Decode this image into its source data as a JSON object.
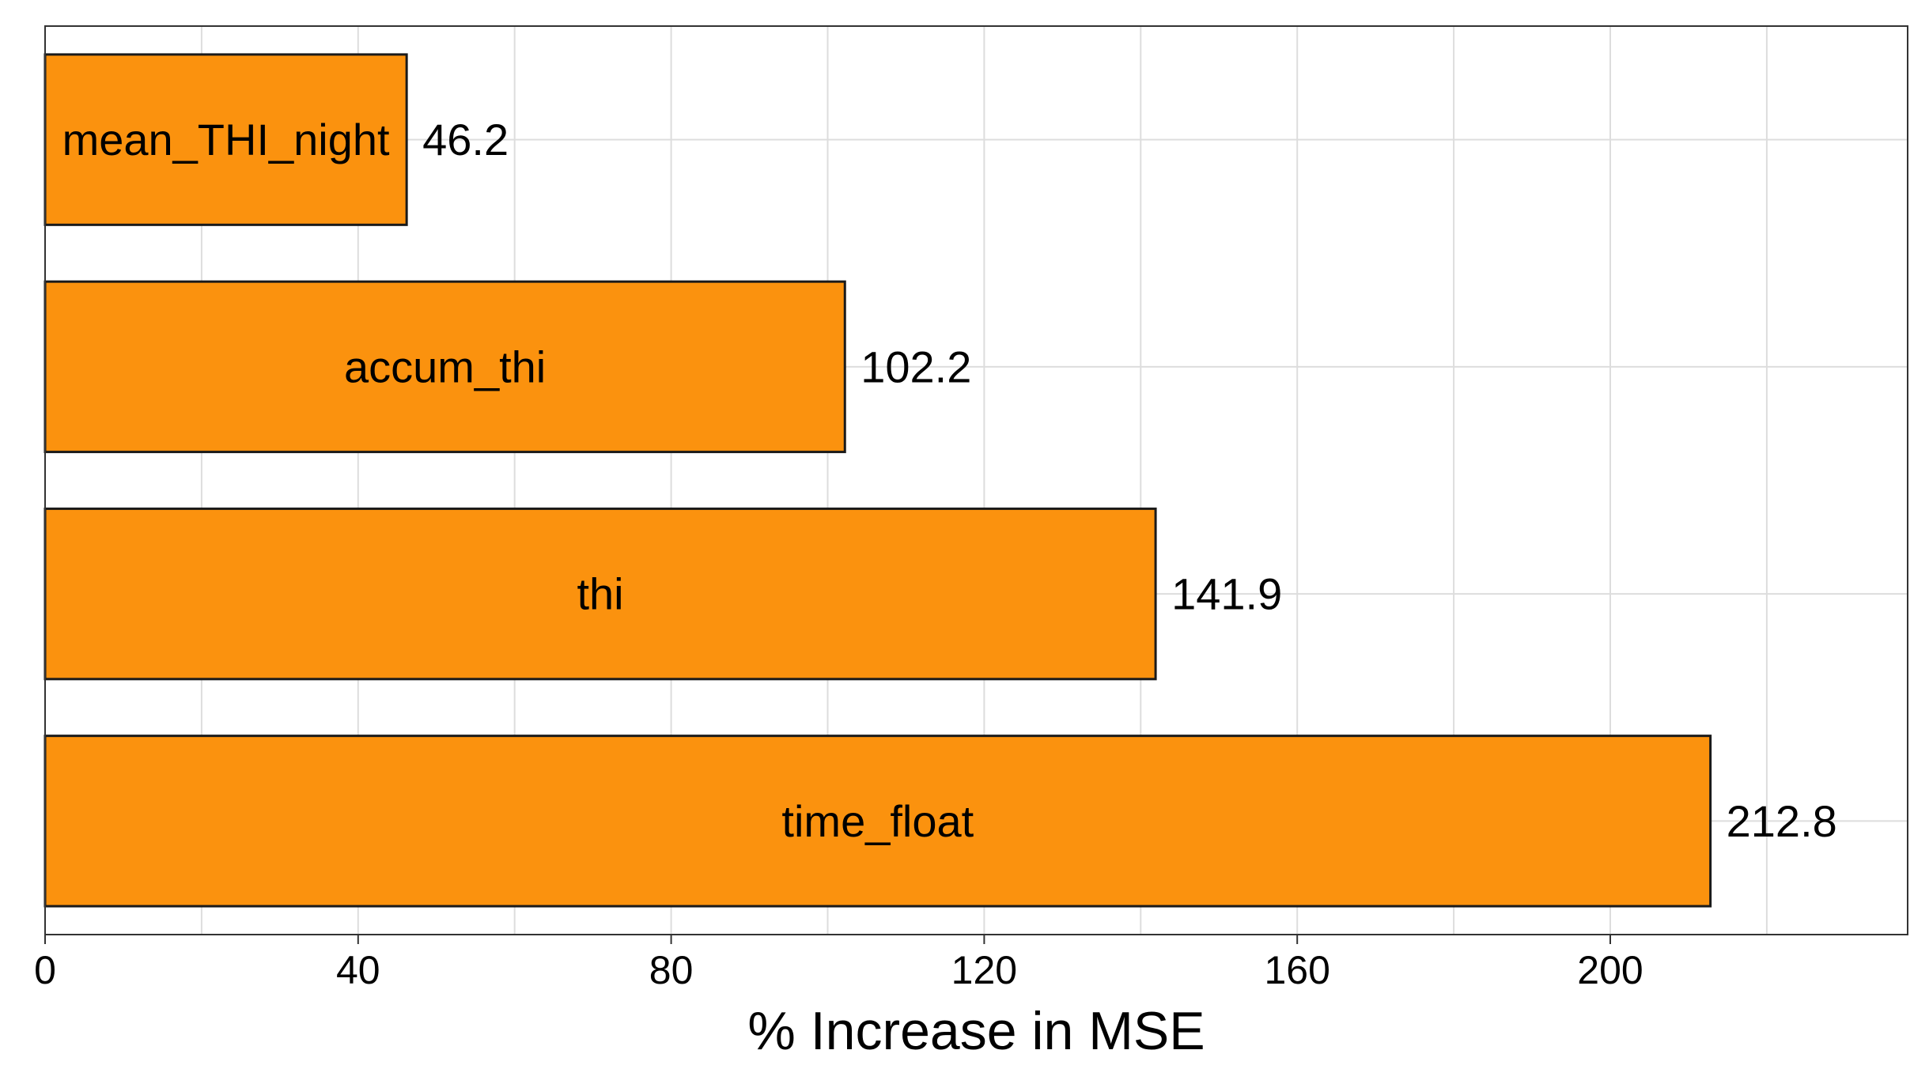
{
  "chart_data": {
    "type": "bar",
    "orientation": "horizontal",
    "categories": [
      "mean_THI_night",
      "accum_thi",
      "thi",
      "time_float"
    ],
    "values": [
      46.2,
      102.2,
      141.9,
      212.8
    ],
    "value_labels": [
      "46.2",
      "102.2",
      "141.9",
      "212.8"
    ],
    "title": "",
    "xlabel": "% Increase in MSE",
    "ylabel": "",
    "xlim": [
      0,
      238
    ],
    "x_ticks": [
      0,
      40,
      80,
      120,
      160,
      200
    ],
    "x_tick_labels": [
      "0",
      "40",
      "80",
      "120",
      "160",
      "200"
    ],
    "grid": true,
    "legend": "none",
    "colors": {
      "bar_fill": "#FB920E",
      "bar_stroke": "#1a1a1a",
      "grid": "#dddddd",
      "frame": "#333333"
    }
  }
}
